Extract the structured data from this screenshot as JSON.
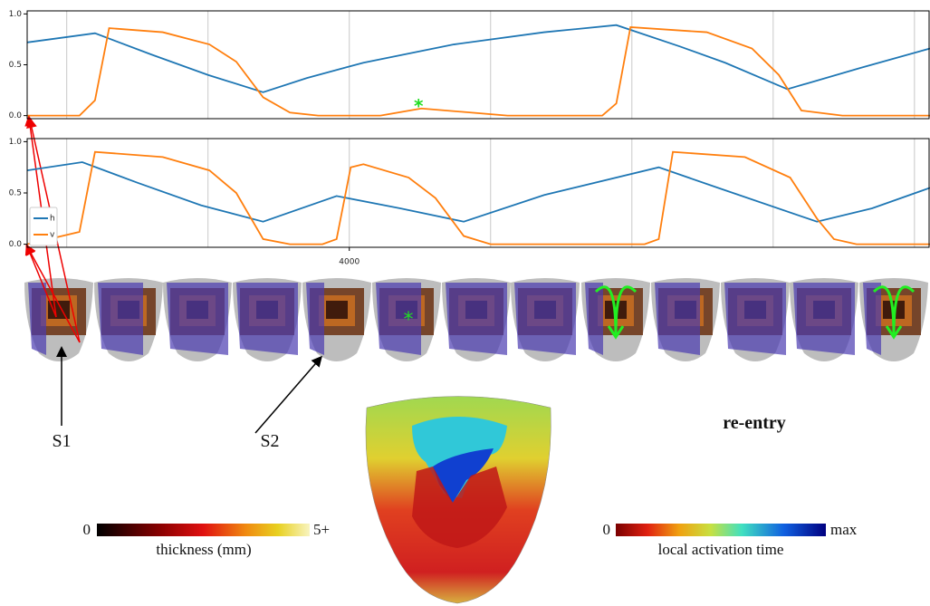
{
  "chart_data": [
    {
      "type": "line",
      "xlim": [
        1720,
        8110
      ],
      "ylim": [
        -0.03,
        1.03
      ],
      "yticks": [
        {
          "value": 0,
          "label": "0.0"
        },
        {
          "value": 0.5,
          "label": "0.5"
        },
        {
          "value": 1,
          "label": "1.0"
        }
      ],
      "xgrid": [
        2000,
        3000,
        4000,
        5000,
        6000,
        7000,
        8000
      ],
      "grid": true,
      "legend": false,
      "series": [
        {
          "color": "#1f77b4",
          "x": [
            1720,
            2200,
            2600,
            3000,
            3390,
            3700,
            4100,
            4740,
            5380,
            5890,
            6340,
            6660,
            7100,
            7620,
            8110
          ],
          "values": [
            0.72,
            0.81,
            0.6,
            0.4,
            0.23,
            0.37,
            0.52,
            0.7,
            0.82,
            0.89,
            0.68,
            0.52,
            0.26,
            0.47,
            0.66
          ]
        },
        {
          "color": "#ff7f0e",
          "x": [
            1720,
            2090,
            2200,
            2300,
            2680,
            3010,
            3200,
            3390,
            3580,
            3780,
            4220,
            4510,
            4860,
            5120,
            5790,
            5890,
            5990,
            6530,
            6850,
            7040,
            7200,
            7490,
            8110
          ],
          "values": [
            0,
            0,
            0.15,
            0.86,
            0.82,
            0.7,
            0.53,
            0.18,
            0.03,
            0,
            0,
            0.07,
            0.03,
            0,
            0,
            0.12,
            0.87,
            0.82,
            0.66,
            0.4,
            0.05,
            0,
            0
          ]
        }
      ],
      "annotations": [
        {
          "text": "*",
          "x": 4490,
          "y": 0.12,
          "color": "#22dd22"
        }
      ]
    },
    {
      "type": "line",
      "xlim": [
        1720,
        8110
      ],
      "ylim": [
        -0.03,
        1.03
      ],
      "yticks": [
        {
          "value": 0,
          "label": "0.0"
        },
        {
          "value": 0.5,
          "label": "0.5"
        },
        {
          "value": 1,
          "label": "1.0"
        }
      ],
      "xticks": [
        4000
      ],
      "xgrid": [
        2000,
        3000,
        5000,
        6000,
        7000,
        8000
      ],
      "grid": true,
      "legend": "lower left",
      "series": [
        {
          "name": "h",
          "color": "#1f77b4",
          "x": [
            1720,
            2110,
            2500,
            2950,
            3390,
            3910,
            4360,
            4810,
            5380,
            6190,
            6610,
            7310,
            7700,
            8110
          ],
          "values": [
            0.72,
            0.8,
            0.6,
            0.38,
            0.22,
            0.47,
            0.35,
            0.22,
            0.48,
            0.75,
            0.55,
            0.22,
            0.35,
            0.55
          ]
        },
        {
          "name": "v",
          "color": "#ff7f0e",
          "x": [
            1720,
            2090,
            2200,
            2680,
            3010,
            3200,
            3390,
            3580,
            3810,
            3910,
            4010,
            4100,
            4420,
            4610,
            4810,
            5000,
            6090,
            6190,
            6290,
            6800,
            7120,
            7310,
            7430,
            7590,
            8110
          ],
          "values": [
            0,
            0.12,
            0.9,
            0.85,
            0.72,
            0.5,
            0.05,
            0,
            0,
            0.05,
            0.75,
            0.78,
            0.65,
            0.45,
            0.08,
            0,
            0,
            0.05,
            0.9,
            0.85,
            0.65,
            0.25,
            0.05,
            0,
            0
          ]
        }
      ]
    }
  ],
  "figure": {
    "thumbnail_mark": "*",
    "stimulus_1": "S1",
    "stimulus_2": "S2",
    "title": "re-entry",
    "colorbars": [
      {
        "min": "0",
        "max": "5+",
        "label": "thickness (mm)"
      },
      {
        "min": "0",
        "max": "max",
        "label": "local activation time"
      }
    ]
  }
}
